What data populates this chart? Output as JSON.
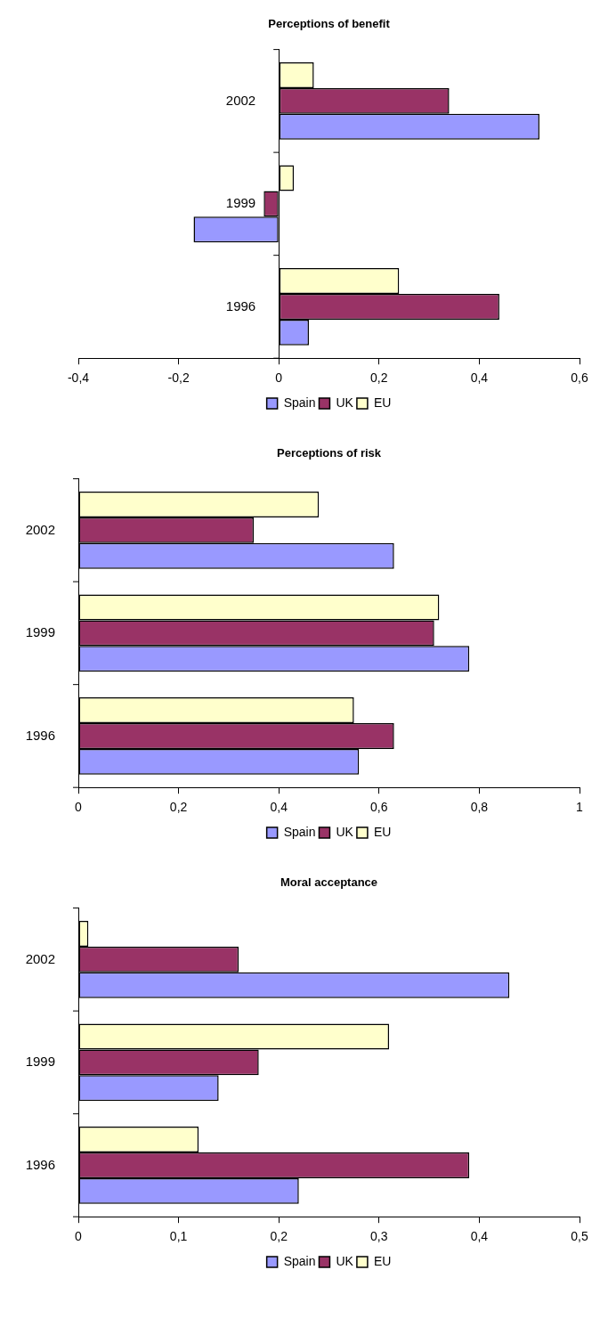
{
  "chart_data": [
    {
      "type": "bar",
      "orientation": "horizontal",
      "title": "Perceptions of benefit",
      "categories": [
        "2002",
        "1999",
        "1996"
      ],
      "series": [
        {
          "name": "Spain",
          "color": "#9999ff",
          "values": [
            0.52,
            -0.17,
            0.06
          ]
        },
        {
          "name": "UK",
          "color": "#993366",
          "values": [
            0.34,
            -0.03,
            0.44
          ]
        },
        {
          "name": "EU",
          "color": "#ffffcc",
          "values": [
            0.07,
            0.03,
            0.24
          ]
        }
      ],
      "xlim": [
        -0.4,
        0.6
      ],
      "xticks": [
        {
          "value": -0.4,
          "label": "-0,4"
        },
        {
          "value": -0.2,
          "label": "-0,2"
        },
        {
          "value": 0,
          "label": "0"
        },
        {
          "value": 0.2,
          "label": "0,2"
        },
        {
          "value": 0.4,
          "label": "0,4"
        },
        {
          "value": 0.6,
          "label": "0,6"
        }
      ],
      "grid": false,
      "legend": "bottom"
    },
    {
      "type": "bar",
      "orientation": "horizontal",
      "title": "Perceptions of risk",
      "categories": [
        "2002",
        "1999",
        "1996"
      ],
      "series": [
        {
          "name": "Spain",
          "color": "#9999ff",
          "values": [
            0.63,
            0.78,
            0.56
          ]
        },
        {
          "name": "UK",
          "color": "#993366",
          "values": [
            0.35,
            0.71,
            0.63
          ]
        },
        {
          "name": "EU",
          "color": "#ffffcc",
          "values": [
            0.48,
            0.72,
            0.55
          ]
        }
      ],
      "xlim": [
        0,
        1
      ],
      "xticks": [
        {
          "value": 0,
          "label": "0"
        },
        {
          "value": 0.2,
          "label": "0,2"
        },
        {
          "value": 0.4,
          "label": "0,4"
        },
        {
          "value": 0.6,
          "label": "0,6"
        },
        {
          "value": 0.8,
          "label": "0,8"
        },
        {
          "value": 1,
          "label": "1"
        }
      ],
      "grid": false,
      "legend": "bottom"
    },
    {
      "type": "bar",
      "orientation": "horizontal",
      "title": "Moral acceptance",
      "categories": [
        "2002",
        "1999",
        "1996"
      ],
      "series": [
        {
          "name": "Spain",
          "color": "#9999ff",
          "values": [
            0.43,
            0.14,
            0.22
          ]
        },
        {
          "name": "UK",
          "color": "#993366",
          "values": [
            0.16,
            0.18,
            0.39
          ]
        },
        {
          "name": "EU",
          "color": "#ffffcc",
          "values": [
            0.01,
            0.31,
            0.12
          ]
        }
      ],
      "xlim": [
        0,
        0.5
      ],
      "xticks": [
        {
          "value": 0,
          "label": "0"
        },
        {
          "value": 0.1,
          "label": "0,1"
        },
        {
          "value": 0.2,
          "label": "0,2"
        },
        {
          "value": 0.3,
          "label": "0,3"
        },
        {
          "value": 0.4,
          "label": "0,4"
        },
        {
          "value": 0.5,
          "label": "0,5"
        }
      ],
      "grid": false,
      "legend": "bottom"
    }
  ]
}
